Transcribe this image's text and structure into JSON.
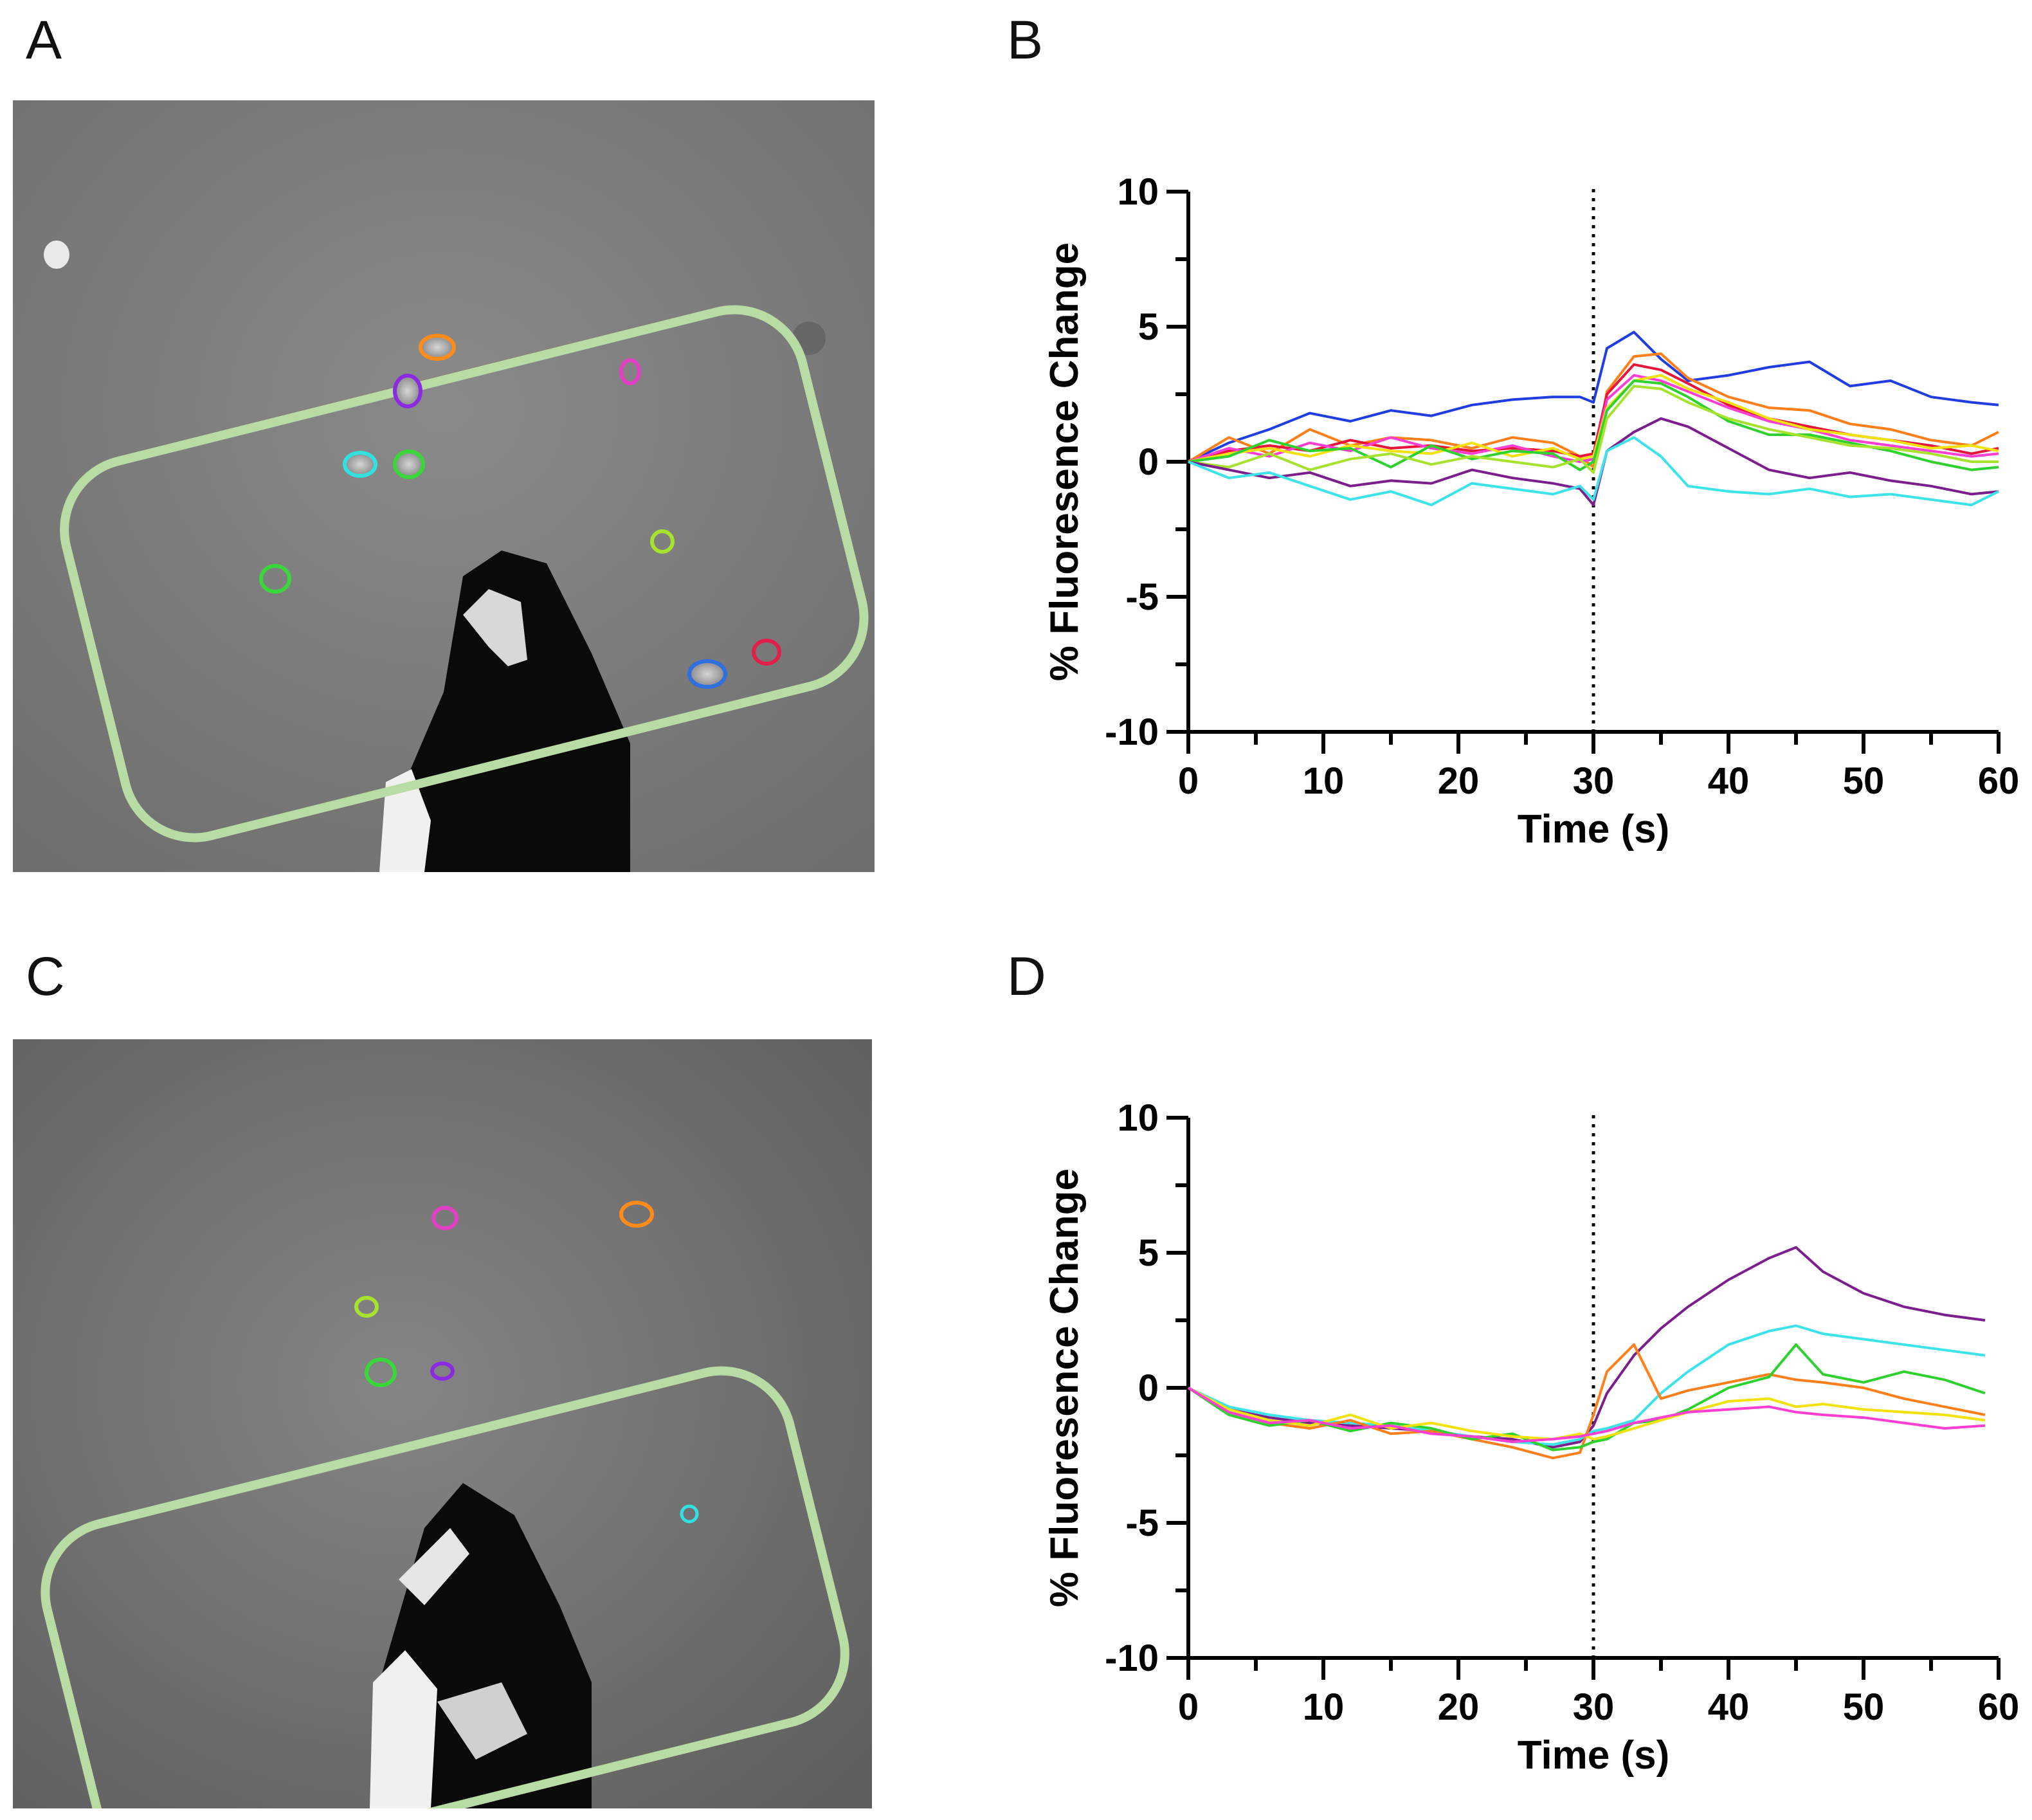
{
  "figure": {
    "panel_labels": [
      "A",
      "B",
      "C",
      "D"
    ]
  },
  "micrographs": [
    {
      "panel": "A",
      "description_roi_colors": [
        "#ff8c1a",
        "#8a2be2",
        "#e23fc4",
        "#33e0e0",
        "#3ad63a",
        "#a6e22e",
        "#2f6fe0",
        "#e0204a"
      ],
      "arena_border_color": "#b9dca4"
    },
    {
      "panel": "C",
      "description_roi_colors": [
        "#e23fc4",
        "#ff8c1a",
        "#a6e22e",
        "#3ad63a",
        "#8a2be2",
        "#33e0e0"
      ],
      "arena_border_color": "#b9dca4"
    }
  ],
  "chart_data": [
    {
      "panel": "B",
      "type": "line",
      "xlabel": "Time (s)",
      "ylabel": "% Fluoresence Change",
      "xlim": [
        0,
        60
      ],
      "ylim": [
        -10,
        10
      ],
      "xticks": [
        0,
        10,
        20,
        30,
        40,
        50,
        60
      ],
      "yticks": [
        10,
        5,
        0,
        -5,
        -10
      ],
      "xtick_labels": [
        "0",
        "10",
        "20",
        "30",
        "40",
        "50",
        "60"
      ],
      "ytick_labels": [
        "10",
        "5",
        "0",
        "-5",
        "-10"
      ],
      "stimulus_line_x": 30,
      "x": [
        0,
        3,
        6,
        9,
        12,
        15,
        18,
        21,
        24,
        27,
        29,
        30,
        31,
        33,
        35,
        37,
        40,
        43,
        46,
        49,
        52,
        55,
        58,
        60
      ],
      "series": [
        {
          "name": "blue",
          "color": "#1f3de0",
          "values": [
            0,
            0.7,
            1.2,
            1.8,
            1.5,
            1.9,
            1.7,
            2.1,
            2.3,
            2.4,
            2.4,
            2.2,
            4.2,
            4.8,
            3.8,
            3.0,
            3.2,
            3.5,
            3.7,
            2.8,
            3.0,
            2.4,
            2.2,
            2.1
          ]
        },
        {
          "name": "orange",
          "color": "#ff7f1a",
          "values": [
            0,
            0.9,
            0.3,
            1.2,
            0.6,
            0.9,
            0.8,
            0.5,
            0.9,
            0.7,
            0.2,
            -0.2,
            2.6,
            3.9,
            4.0,
            3.1,
            2.4,
            2.0,
            1.9,
            1.4,
            1.2,
            0.8,
            0.6,
            1.1
          ]
        },
        {
          "name": "red",
          "color": "#e8153a",
          "values": [
            0,
            0.4,
            0.6,
            0.4,
            0.8,
            0.5,
            0.6,
            0.4,
            0.5,
            0.4,
            0.2,
            0.3,
            2.5,
            3.6,
            3.4,
            2.9,
            2.1,
            1.6,
            1.3,
            1.0,
            0.8,
            0.6,
            0.3,
            0.5
          ]
        },
        {
          "name": "magenta",
          "color": "#ff3fd1",
          "values": [
            0,
            0.5,
            0.2,
            0.7,
            0.4,
            0.9,
            0.5,
            0.3,
            0.6,
            0.2,
            0.0,
            0.1,
            2.3,
            3.2,
            3.0,
            2.6,
            2.0,
            1.5,
            1.2,
            0.8,
            0.6,
            0.4,
            0.2,
            0.3
          ]
        },
        {
          "name": "yellow",
          "color": "#f2e20b",
          "values": [
            0,
            0.3,
            0.5,
            0.2,
            0.6,
            0.4,
            0.3,
            0.7,
            0.2,
            0.5,
            0.1,
            0.2,
            2.0,
            3.0,
            3.2,
            2.7,
            2.2,
            1.6,
            1.2,
            1.0,
            0.8,
            0.5,
            0.6,
            0.4
          ]
        },
        {
          "name": "green",
          "color": "#2ed12e",
          "values": [
            0,
            0.2,
            0.8,
            0.4,
            0.5,
            -0.2,
            0.6,
            0.1,
            0.4,
            0.3,
            -0.3,
            0.0,
            1.9,
            3.0,
            2.9,
            2.4,
            1.5,
            1.0,
            1.0,
            0.7,
            0.4,
            0.0,
            -0.3,
            -0.2
          ]
        },
        {
          "name": "lime",
          "color": "#a6e22e",
          "values": [
            0,
            -0.2,
            0.3,
            -0.3,
            0.1,
            0.3,
            -0.1,
            0.2,
            0.0,
            -0.2,
            0.1,
            -0.4,
            1.6,
            2.8,
            2.7,
            2.2,
            1.6,
            1.2,
            0.9,
            0.6,
            0.5,
            0.3,
            0.0,
            0.0
          ]
        },
        {
          "name": "purple",
          "color": "#7b1f8c",
          "values": [
            0,
            -0.3,
            -0.6,
            -0.4,
            -0.9,
            -0.7,
            -0.8,
            -0.3,
            -0.6,
            -0.8,
            -1.0,
            -1.6,
            0.4,
            1.1,
            1.6,
            1.3,
            0.5,
            -0.3,
            -0.6,
            -0.4,
            -0.7,
            -0.9,
            -1.2,
            -1.1
          ]
        },
        {
          "name": "cyan",
          "color": "#3ce3e8",
          "values": [
            0,
            -0.6,
            -0.4,
            -0.9,
            -1.4,
            -1.1,
            -1.6,
            -0.8,
            -1.0,
            -1.2,
            -0.9,
            -1.4,
            0.4,
            0.9,
            0.2,
            -0.9,
            -1.1,
            -1.2,
            -1.0,
            -1.3,
            -1.2,
            -1.4,
            -1.6,
            -1.1
          ]
        }
      ]
    },
    {
      "panel": "D",
      "type": "line",
      "xlabel": "Time (s)",
      "ylabel": "% Fluoresence Change",
      "xlim": [
        0,
        60
      ],
      "ylim": [
        -10,
        10
      ],
      "xticks": [
        0,
        10,
        20,
        30,
        40,
        50,
        60
      ],
      "yticks": [
        10,
        5,
        0,
        -5,
        -10
      ],
      "xtick_labels": [
        "0",
        "10",
        "20",
        "30",
        "40",
        "50",
        "60"
      ],
      "ytick_labels": [
        "10",
        "5",
        "0",
        "-5",
        "-10"
      ],
      "stimulus_line_x": 30,
      "x": [
        0,
        3,
        6,
        9,
        12,
        15,
        18,
        21,
        24,
        27,
        29,
        30,
        31,
        33,
        35,
        37,
        40,
        43,
        45,
        47,
        50,
        53,
        56,
        59
      ],
      "series": [
        {
          "name": "purple",
          "color": "#7b1f8c",
          "values": [
            0,
            -0.8,
            -1.1,
            -1.3,
            -1.4,
            -1.5,
            -1.6,
            -1.8,
            -1.9,
            -2.2,
            -2.0,
            -1.4,
            -0.2,
            1.2,
            2.2,
            3.0,
            4.0,
            4.8,
            5.2,
            4.3,
            3.5,
            3.0,
            2.7,
            2.5
          ]
        },
        {
          "name": "cyan",
          "color": "#3ce3e8",
          "values": [
            0,
            -0.7,
            -1.0,
            -1.2,
            -1.3,
            -1.4,
            -1.6,
            -1.8,
            -2.0,
            -2.1,
            -1.9,
            -1.6,
            -1.5,
            -1.2,
            -0.2,
            0.6,
            1.6,
            2.1,
            2.3,
            2.0,
            1.8,
            1.6,
            1.4,
            1.2
          ]
        },
        {
          "name": "orange",
          "color": "#ff7f1a",
          "values": [
            0,
            -0.9,
            -1.3,
            -1.5,
            -1.2,
            -1.7,
            -1.6,
            -1.9,
            -2.2,
            -2.6,
            -2.4,
            -1.0,
            0.6,
            1.6,
            -0.4,
            -0.1,
            0.2,
            0.5,
            0.3,
            0.2,
            0.0,
            -0.4,
            -0.7,
            -1.0
          ]
        },
        {
          "name": "green",
          "color": "#2ed12e",
          "values": [
            0,
            -1.0,
            -1.4,
            -1.2,
            -1.6,
            -1.3,
            -1.5,
            -1.9,
            -1.7,
            -2.3,
            -2.2,
            -2.0,
            -1.9,
            -1.3,
            -1.2,
            -0.8,
            0.0,
            0.4,
            1.6,
            0.5,
            0.2,
            0.6,
            0.3,
            -0.2
          ]
        },
        {
          "name": "yellow",
          "color": "#f2e20b",
          "values": [
            0,
            -0.8,
            -1.2,
            -1.4,
            -1.0,
            -1.5,
            -1.3,
            -1.6,
            -1.8,
            -1.9,
            -1.7,
            -1.9,
            -1.8,
            -1.5,
            -1.2,
            -0.9,
            -0.5,
            -0.4,
            -0.7,
            -0.6,
            -0.8,
            -0.9,
            -1.0,
            -1.2
          ]
        },
        {
          "name": "magenta",
          "color": "#ff3fd1",
          "values": [
            0,
            -0.9,
            -1.3,
            -1.2,
            -1.5,
            -1.4,
            -1.7,
            -1.8,
            -2.0,
            -1.9,
            -1.8,
            -1.7,
            -1.6,
            -1.3,
            -1.1,
            -0.9,
            -0.8,
            -0.7,
            -0.9,
            -1.0,
            -1.1,
            -1.3,
            -1.5,
            -1.4
          ]
        }
      ]
    }
  ]
}
